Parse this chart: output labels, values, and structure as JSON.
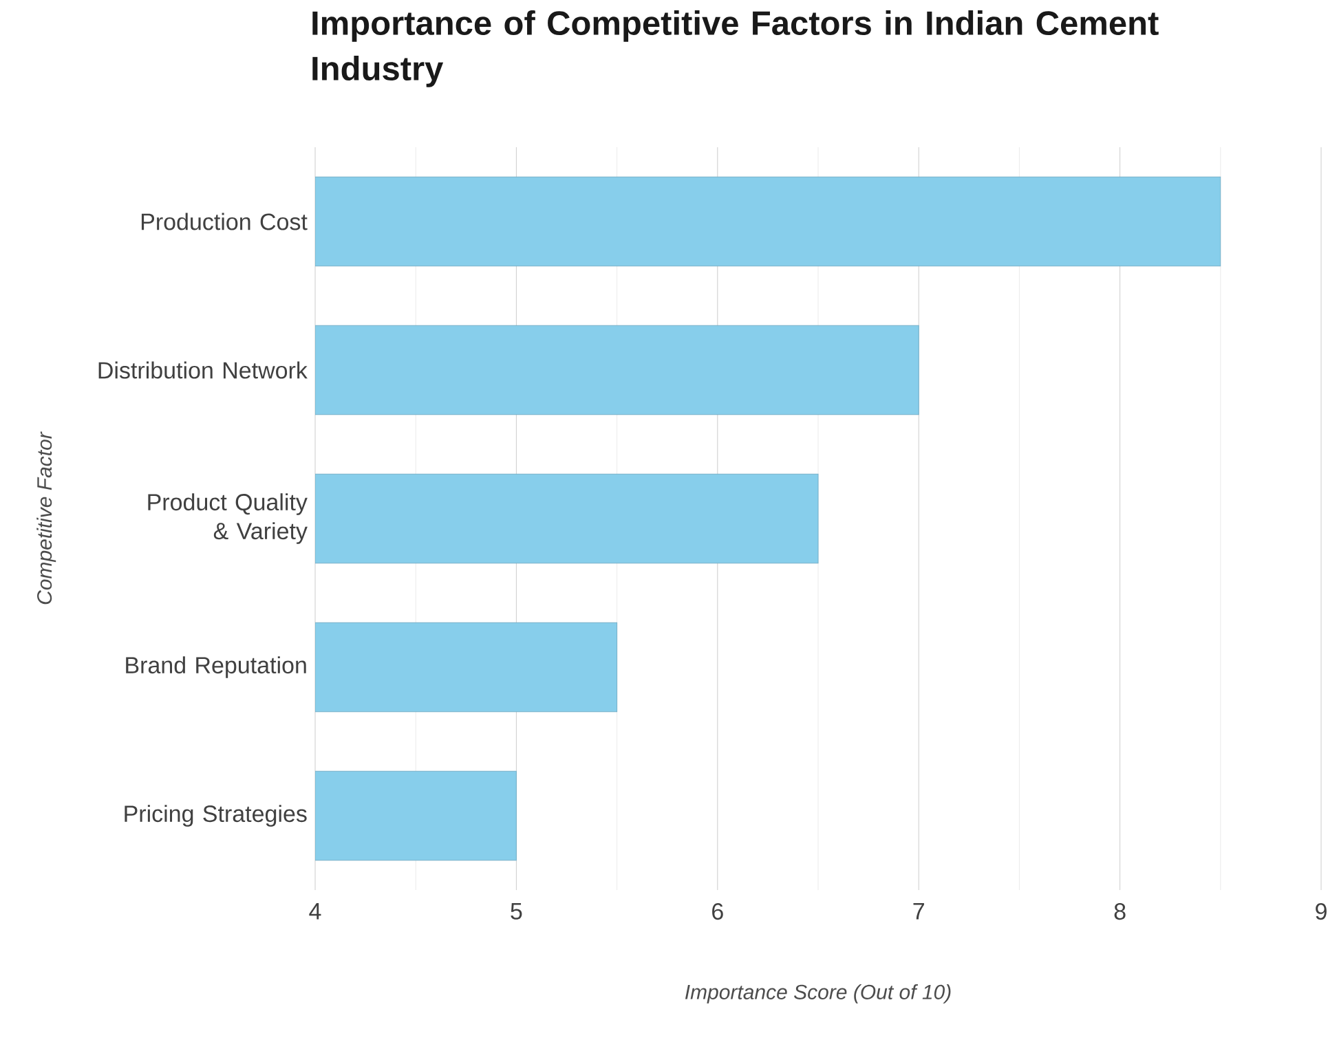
{
  "chart_data": {
    "type": "bar",
    "orientation": "horizontal",
    "title": "Importance of Competitive Factors in Indian Cement Industry",
    "xlabel": "Importance Score (Out of 10)",
    "ylabel": "Competitive Factor",
    "categories": [
      "Production Cost",
      "Distribution Network",
      "Product Quality & Variety",
      "Brand Reputation",
      "Pricing Strategies"
    ],
    "values": [
      8.5,
      7,
      6.5,
      5.5,
      5
    ],
    "color": "#87ceeb",
    "xlim": [
      4,
      9
    ],
    "xticks": [
      4,
      {
        "value": 4.5,
        "label": null
      },
      5,
      {
        "value": 5.5,
        "label": null
      },
      6,
      {
        "value": 6.5,
        "label": null
      },
      7,
      {
        "value": 7.5,
        "label": null
      },
      8,
      {
        "value": 8.5,
        "label": null
      },
      9
    ],
    "grid": "x"
  }
}
